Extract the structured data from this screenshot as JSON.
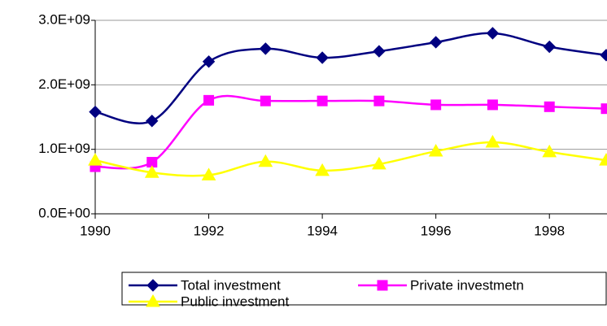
{
  "chart_data": {
    "type": "line",
    "x": [
      1990,
      1991,
      1992,
      1993,
      1994,
      1995,
      1996,
      1997,
      1998,
      1999
    ],
    "xlim": [
      1990,
      1999
    ],
    "xticks": [
      1990,
      1992,
      1994,
      1996,
      1998
    ],
    "ylim": [
      0,
      3000000000
    ],
    "yticks": [
      {
        "value": 0,
        "label": "0.0E+00"
      },
      {
        "value": 1000000000,
        "label": "1.0E+09"
      },
      {
        "value": 2000000000,
        "label": "2.0E+09"
      },
      {
        "value": 3000000000,
        "label": "3.0E+09"
      }
    ],
    "grid": true,
    "series": [
      {
        "name": "Total investment",
        "color": "#000080",
        "marker": "diamond",
        "values": [
          1580000000,
          1440000000,
          2360000000,
          2560000000,
          2420000000,
          2520000000,
          2660000000,
          2800000000,
          2590000000,
          2460000000
        ]
      },
      {
        "name": "Private investmetn",
        "color": "#ff00ff",
        "marker": "square",
        "values": [
          730000000,
          800000000,
          1760000000,
          1750000000,
          1750000000,
          1750000000,
          1690000000,
          1690000000,
          1660000000,
          1630000000
        ]
      },
      {
        "name": "Public investment",
        "color": "#ffff00",
        "marker": "triangle",
        "values": [
          830000000,
          640000000,
          600000000,
          810000000,
          670000000,
          770000000,
          970000000,
          1110000000,
          960000000,
          830000000
        ]
      }
    ]
  }
}
